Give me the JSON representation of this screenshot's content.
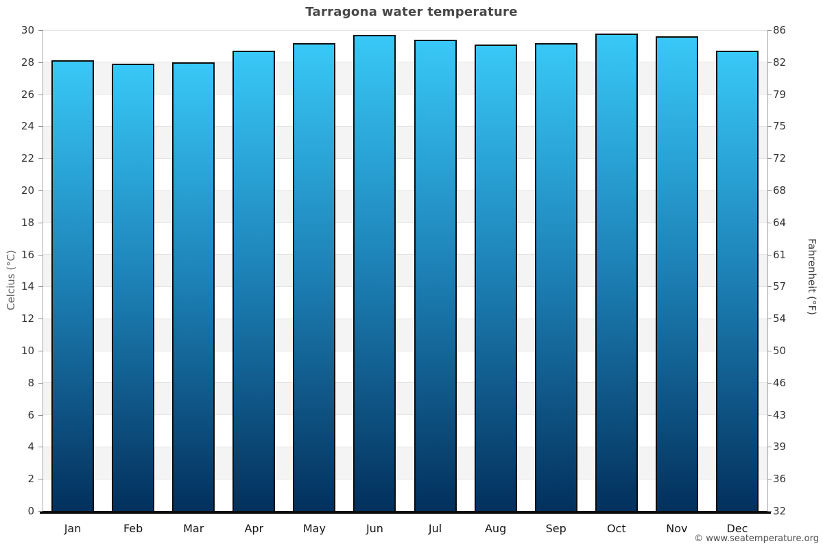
{
  "title": "Tarragona water temperature",
  "watermark": "© www.seatemperature.org",
  "axes": {
    "left_label": "Celcius (°C)",
    "right_label": "Fahrenheit (°F)"
  },
  "chart_data": {
    "type": "bar",
    "title": "Tarragona water temperature",
    "categories": [
      "Jan",
      "Feb",
      "Mar",
      "Apr",
      "May",
      "Jun",
      "Jul",
      "Aug",
      "Sep",
      "Oct",
      "Nov",
      "Dec"
    ],
    "series": [
      {
        "name": "Water temperature (°C)",
        "values": [
          28.1,
          27.9,
          28.0,
          28.7,
          29.2,
          29.7,
          29.4,
          29.1,
          29.2,
          29.8,
          29.6,
          28.7
        ]
      }
    ],
    "xlabel": "",
    "ylabel": "Celcius (°C)",
    "ylabel_right": "Fahrenheit (°F)",
    "ylim": [
      0,
      30
    ],
    "y_ticks_celsius": [
      0,
      2,
      4,
      6,
      8,
      10,
      12,
      14,
      16,
      18,
      20,
      22,
      24,
      26,
      28,
      30
    ],
    "y_ticks_fahrenheit": [
      32,
      36,
      39,
      43,
      46,
      50,
      54,
      57,
      61,
      64,
      68,
      72,
      75,
      79,
      82,
      86
    ],
    "grid": true,
    "legend": "none",
    "stripe_bands": "alternating 2°C horizontal bands",
    "colors": {
      "bar_gradient_top": "#38c8f7",
      "bar_gradient_mid": "#1c7fb4",
      "bar_gradient_bottom": "#03305c",
      "bar_border": "#0d0d0d",
      "stripe": "#f4f4f4",
      "gridline": "#e4e4e4",
      "title_text": "#474747",
      "tick_text": "#333333"
    }
  }
}
